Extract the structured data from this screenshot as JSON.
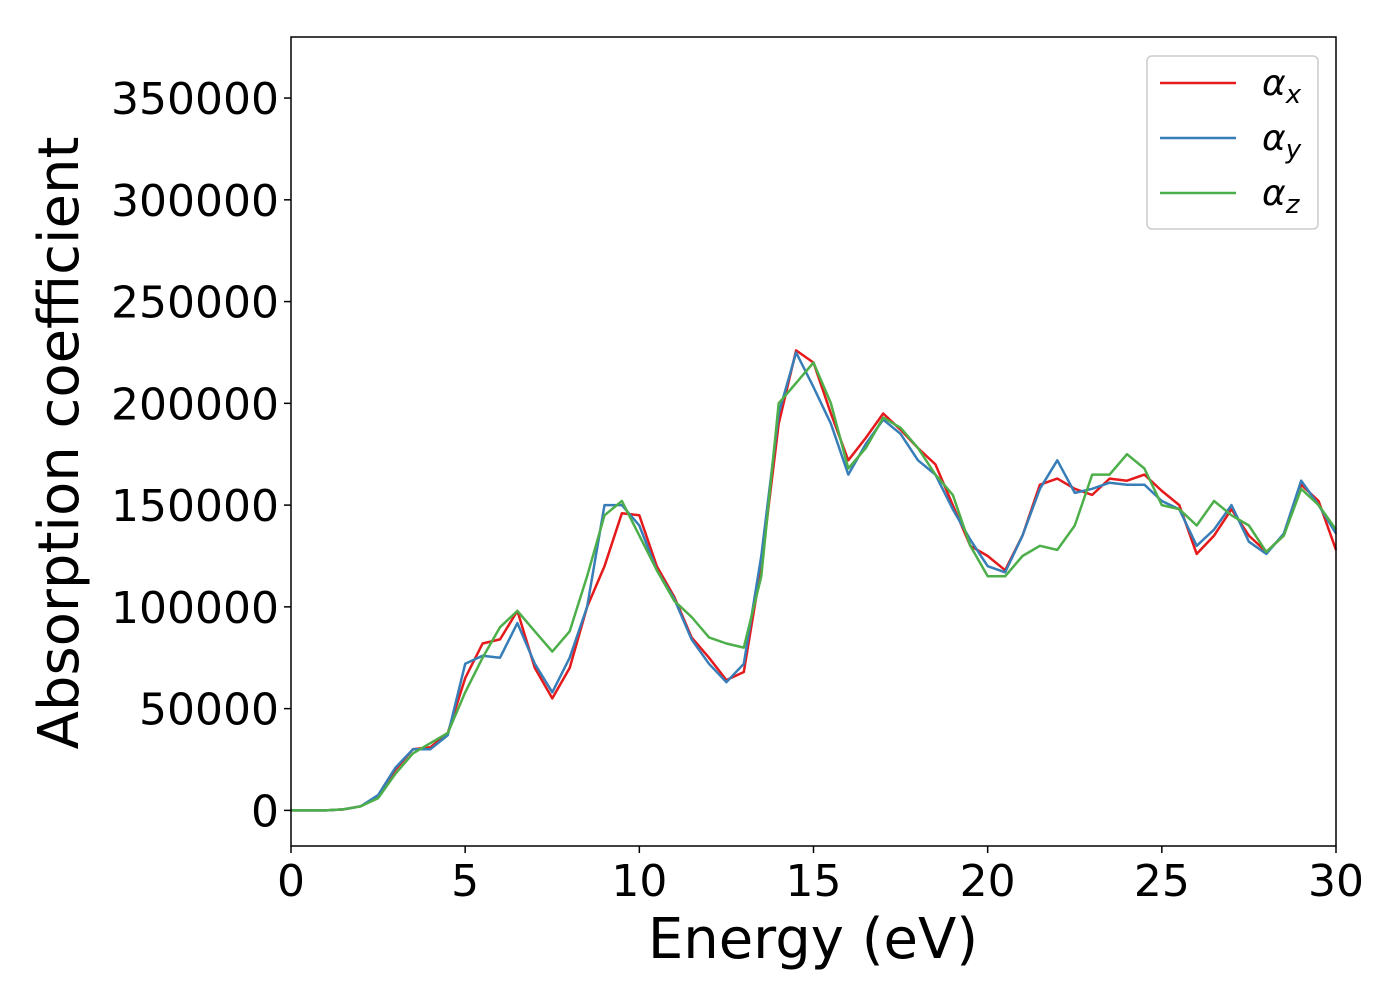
{
  "chart_data": {
    "type": "line",
    "xlabel": "Energy (eV)",
    "ylabel": "Absorption coefficient",
    "x": [
      0,
      0.5,
      1,
      1.5,
      2,
      2.5,
      3,
      3.5,
      4,
      4.5,
      5,
      5.5,
      6,
      6.5,
      7,
      7.5,
      8,
      8.5,
      9,
      9.5,
      10,
      10.5,
      11,
      11.5,
      12,
      12.5,
      13,
      13.5,
      14,
      14.5,
      15,
      15.5,
      16,
      16.5,
      17,
      17.5,
      18,
      18.5,
      19,
      19.5,
      20,
      20.5,
      21,
      21.5,
      22,
      22.5,
      23,
      23.5,
      24,
      24.5,
      25,
      25.5,
      26,
      26.5,
      27,
      27.5,
      28,
      28.5,
      29,
      29.5,
      30
    ],
    "series": [
      {
        "name": "αx",
        "color": "#e41a1c",
        "values": [
          0,
          0,
          0,
          500,
          2000,
          7000,
          20000,
          30000,
          31000,
          38000,
          65000,
          82000,
          84000,
          98000,
          70000,
          55000,
          70000,
          100000,
          120000,
          146000,
          145000,
          120000,
          105000,
          85000,
          75000,
          64000,
          68000,
          120000,
          190000,
          226000,
          220000,
          195000,
          172000,
          183000,
          195000,
          187000,
          178000,
          170000,
          150000,
          130000,
          125000,
          118000,
          135000,
          160000,
          163000,
          158000,
          155000,
          163000,
          162000,
          165000,
          157000,
          150000,
          126000,
          135000,
          148000,
          135000,
          127000,
          135000,
          160000,
          152000,
          128000
        ]
      },
      {
        "name": "αy",
        "color": "#377eb8",
        "values": [
          0,
          0,
          0,
          500,
          2000,
          7500,
          21000,
          30000,
          30000,
          37000,
          72000,
          76000,
          75000,
          92000,
          72000,
          58000,
          75000,
          100000,
          150000,
          150000,
          140000,
          118000,
          104000,
          84000,
          72000,
          63000,
          72000,
          125000,
          195000,
          225000,
          208000,
          190000,
          165000,
          180000,
          192000,
          185000,
          172000,
          165000,
          148000,
          133000,
          120000,
          117000,
          135000,
          158000,
          172000,
          156000,
          158000,
          161000,
          160000,
          160000,
          152000,
          148000,
          130000,
          138000,
          150000,
          132000,
          126000,
          136000,
          162000,
          150000,
          136000
        ]
      },
      {
        "name": "αz",
        "color": "#4daf4a",
        "values": [
          0,
          0,
          0,
          500,
          2000,
          6000,
          18000,
          28000,
          33000,
          38000,
          58000,
          75000,
          90000,
          98000,
          88000,
          78000,
          88000,
          115000,
          145000,
          152000,
          135000,
          118000,
          103000,
          95000,
          85000,
          82000,
          80000,
          115000,
          200000,
          210000,
          220000,
          200000,
          168000,
          178000,
          193000,
          188000,
          178000,
          165000,
          155000,
          130000,
          115000,
          115000,
          125000,
          130000,
          128000,
          140000,
          165000,
          165000,
          175000,
          168000,
          150000,
          148000,
          140000,
          152000,
          145000,
          140000,
          127000,
          135000,
          158000,
          150000,
          138000
        ]
      }
    ],
    "xlim": [
      0,
      30
    ],
    "xticks": [
      0,
      5,
      10,
      15,
      20,
      25,
      30
    ],
    "ylim": [
      -17500,
      380000
    ],
    "yticks": [
      0,
      50000,
      100000,
      150000,
      200000,
      250000,
      300000,
      350000
    ],
    "grid": false,
    "legend": "upper right"
  }
}
